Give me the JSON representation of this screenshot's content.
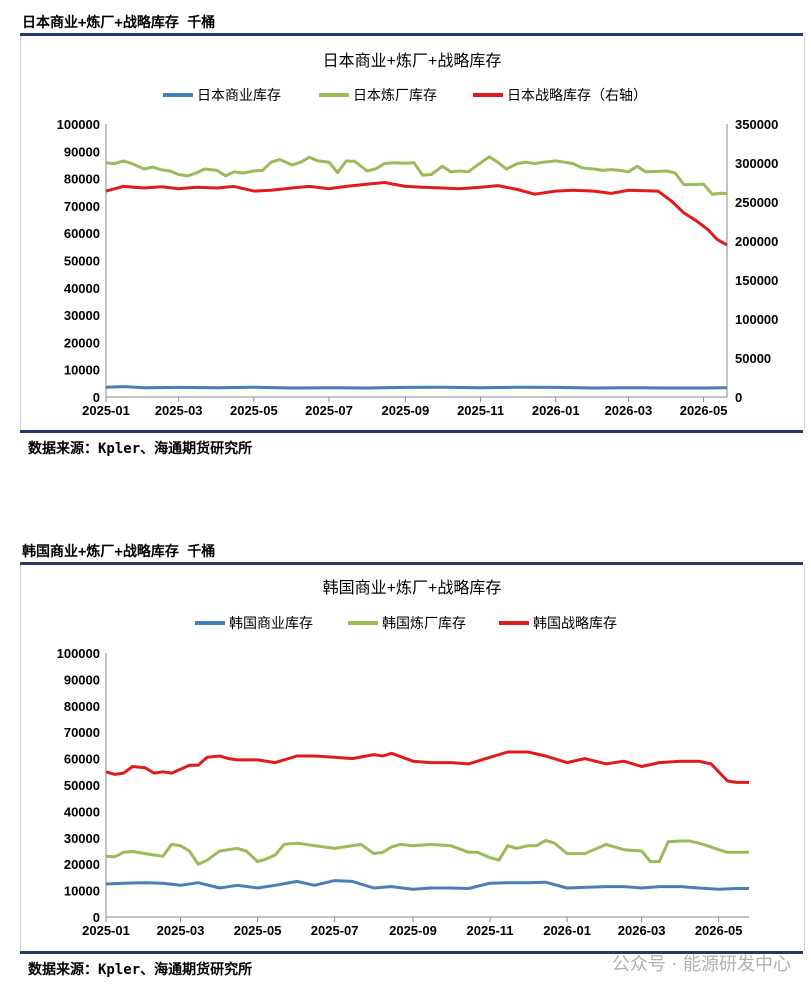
{
  "sections": [
    {
      "header": "日本商业+炼厂+战略库存  千桶",
      "source": "数据来源：Kpler、海通期货研究所"
    },
    {
      "header": "韩国商业+炼厂+战略库存  千桶",
      "source": "数据来源：Kpler、海通期货研究所"
    }
  ],
  "watermark": "公众号 · 能源研发中心",
  "chart_data": [
    {
      "type": "line",
      "title": "日本商业+炼厂+战略库存",
      "x_tick_labels": [
        "2025-01",
        "2025-03",
        "2025-05",
        "2025-07",
        "2025-09",
        "2025-11",
        "2026-01",
        "2026-03",
        "2026-05"
      ],
      "x_range": [
        "2025-01-01",
        "2026-05-20"
      ],
      "y_left": {
        "range": [
          0,
          100000
        ],
        "ticks": [
          0,
          10000,
          20000,
          30000,
          40000,
          50000,
          60000,
          70000,
          80000,
          90000,
          100000
        ]
      },
      "y_right": {
        "range": [
          0,
          350000
        ],
        "ticks": [
          0,
          50000,
          100000,
          150000,
          200000,
          250000,
          300000,
          350000
        ]
      },
      "legend_position": "top",
      "series": [
        {
          "name": "日本商业库存",
          "color": "#4a7ebb",
          "axis": "left",
          "x": [
            "2025-01-01",
            "2025-01-15",
            "2025-02-01",
            "2025-03-01",
            "2025-04-01",
            "2025-05-01",
            "2025-06-01",
            "2025-07-01",
            "2025-08-01",
            "2025-09-01",
            "2025-10-01",
            "2025-11-01",
            "2025-12-01",
            "2026-01-01",
            "2026-02-01",
            "2026-03-01",
            "2026-04-01",
            "2026-05-01",
            "2026-05-20"
          ],
          "values": [
            3600,
            3800,
            3400,
            3500,
            3400,
            3600,
            3300,
            3400,
            3300,
            3500,
            3600,
            3400,
            3600,
            3500,
            3300,
            3400,
            3300,
            3300,
            3400
          ]
        },
        {
          "name": "日本炼厂库存",
          "color": "#9bbb59",
          "axis": "left",
          "x": [
            "2025-01-01",
            "2025-01-08",
            "2025-01-15",
            "2025-01-22",
            "2025-02-01",
            "2025-02-08",
            "2025-02-15",
            "2025-02-22",
            "2025-03-01",
            "2025-03-08",
            "2025-03-15",
            "2025-03-22",
            "2025-04-01",
            "2025-04-08",
            "2025-04-15",
            "2025-04-22",
            "2025-05-01",
            "2025-05-08",
            "2025-05-15",
            "2025-05-22",
            "2025-06-01",
            "2025-06-08",
            "2025-06-15",
            "2025-06-22",
            "2025-07-01",
            "2025-07-08",
            "2025-07-15",
            "2025-07-22",
            "2025-08-01",
            "2025-08-08",
            "2025-08-15",
            "2025-08-22",
            "2025-09-01",
            "2025-09-08",
            "2025-09-15",
            "2025-09-22",
            "2025-10-01",
            "2025-10-08",
            "2025-10-15",
            "2025-10-22",
            "2025-11-01",
            "2025-11-08",
            "2025-11-15",
            "2025-11-22",
            "2025-12-01",
            "2025-12-08",
            "2025-12-15",
            "2025-12-22",
            "2026-01-01",
            "2026-01-08",
            "2026-01-15",
            "2026-01-22",
            "2026-02-01",
            "2026-02-08",
            "2026-02-15",
            "2026-02-22",
            "2026-03-01",
            "2026-03-08",
            "2026-03-15",
            "2026-03-22",
            "2026-04-01",
            "2026-04-08",
            "2026-04-15",
            "2026-04-22",
            "2026-05-01",
            "2026-05-08",
            "2026-05-15",
            "2026-05-20"
          ],
          "values": [
            85800,
            85500,
            86500,
            85500,
            83500,
            84200,
            83200,
            82800,
            81500,
            81000,
            82000,
            83500,
            83000,
            81000,
            82500,
            82000,
            82800,
            83000,
            86000,
            87000,
            85000,
            86000,
            87800,
            86500,
            86000,
            82200,
            86500,
            86300,
            82800,
            83600,
            85500,
            85800,
            85600,
            85800,
            81200,
            81500,
            84500,
            82500,
            82800,
            82500,
            85800,
            88000,
            86000,
            83500,
            85500,
            86000,
            85500,
            86000,
            86500,
            86000,
            85500,
            84000,
            83500,
            83000,
            83300,
            83000,
            82500,
            84500,
            82500,
            82600,
            82800,
            82000,
            77800,
            77800,
            78000,
            74300,
            74600,
            74500
          ]
        },
        {
          "name": "日本战略库存（右轴）",
          "color": "#e31a1c",
          "axis": "right",
          "x": [
            "2025-01-01",
            "2025-01-15",
            "2025-02-01",
            "2025-02-15",
            "2025-03-01",
            "2025-03-15",
            "2025-04-01",
            "2025-04-15",
            "2025-05-01",
            "2025-05-15",
            "2025-06-01",
            "2025-06-15",
            "2025-07-01",
            "2025-07-15",
            "2025-08-01",
            "2025-08-15",
            "2025-09-01",
            "2025-09-15",
            "2025-10-01",
            "2025-10-15",
            "2025-11-01",
            "2025-11-15",
            "2025-12-01",
            "2025-12-15",
            "2026-01-01",
            "2026-01-15",
            "2026-02-01",
            "2026-02-15",
            "2026-03-01",
            "2026-03-15",
            "2026-03-25",
            "2026-04-05",
            "2026-04-15",
            "2026-04-25",
            "2026-05-05",
            "2026-05-12",
            "2026-05-20"
          ],
          "values": [
            264000,
            270000,
            268000,
            269500,
            267000,
            269000,
            268000,
            270000,
            264000,
            265000,
            268000,
            270000,
            267000,
            270000,
            273000,
            275000,
            270000,
            269000,
            268000,
            267000,
            269000,
            271000,
            266000,
            260000,
            264000,
            265000,
            264000,
            261000,
            265000,
            264500,
            264000,
            251000,
            236000,
            226000,
            214000,
            202000,
            195000
          ]
        }
      ]
    },
    {
      "type": "line",
      "title": "韩国商业+炼厂+战略库存",
      "x_tick_labels": [
        "2025-01",
        "2025-03",
        "2025-05",
        "2025-07",
        "2025-09",
        "2025-11",
        "2026-01",
        "2026-03",
        "2026-05"
      ],
      "x_range": [
        "2025-01-01",
        "2026-05-25"
      ],
      "y_left": {
        "range": [
          0,
          100000
        ],
        "ticks": [
          0,
          10000,
          20000,
          30000,
          40000,
          50000,
          60000,
          70000,
          80000,
          90000,
          100000
        ]
      },
      "legend_position": "top",
      "series": [
        {
          "name": "韩国商业库存",
          "color": "#4a7ebb",
          "axis": "left",
          "x": [
            "2025-01-01",
            "2025-01-15",
            "2025-02-01",
            "2025-02-15",
            "2025-03-01",
            "2025-03-15",
            "2025-04-01",
            "2025-04-15",
            "2025-05-01",
            "2025-05-15",
            "2025-06-01",
            "2025-06-15",
            "2025-07-01",
            "2025-07-15",
            "2025-08-01",
            "2025-08-15",
            "2025-09-01",
            "2025-09-15",
            "2025-10-01",
            "2025-10-15",
            "2025-11-01",
            "2025-11-15",
            "2025-12-01",
            "2025-12-15",
            "2026-01-01",
            "2026-01-15",
            "2026-02-01",
            "2026-02-15",
            "2026-03-01",
            "2026-03-15",
            "2026-04-01",
            "2026-04-15",
            "2026-05-01",
            "2026-05-15",
            "2026-05-25"
          ],
          "values": [
            12500,
            12800,
            13000,
            12800,
            12000,
            13000,
            11000,
            12000,
            11000,
            12000,
            13500,
            12000,
            13800,
            13500,
            11000,
            11500,
            10500,
            11000,
            11000,
            10800,
            12800,
            13000,
            13000,
            13200,
            11000,
            11200,
            11500,
            11500,
            11000,
            11500,
            11500,
            11000,
            10500,
            10800,
            10800
          ]
        },
        {
          "name": "韩国炼厂库存",
          "color": "#9bbb59",
          "axis": "left",
          "x": [
            "2025-01-01",
            "2025-01-08",
            "2025-01-15",
            "2025-01-22",
            "2025-02-01",
            "2025-02-15",
            "2025-02-22",
            "2025-03-01",
            "2025-03-08",
            "2025-03-15",
            "2025-03-22",
            "2025-04-01",
            "2025-04-15",
            "2025-04-22",
            "2025-05-01",
            "2025-05-08",
            "2025-05-15",
            "2025-05-22",
            "2025-06-01",
            "2025-06-15",
            "2025-07-01",
            "2025-07-08",
            "2025-07-15",
            "2025-07-22",
            "2025-08-01",
            "2025-08-08",
            "2025-08-15",
            "2025-08-22",
            "2025-09-01",
            "2025-09-15",
            "2025-10-01",
            "2025-10-15",
            "2025-10-22",
            "2025-11-01",
            "2025-11-08",
            "2025-11-15",
            "2025-11-22",
            "2025-12-01",
            "2025-12-08",
            "2025-12-15",
            "2025-12-22",
            "2026-01-01",
            "2026-01-15",
            "2026-02-01",
            "2026-02-15",
            "2026-03-01",
            "2026-03-08",
            "2026-03-15",
            "2026-03-22",
            "2026-04-01",
            "2026-04-08",
            "2026-04-15",
            "2026-04-22",
            "2026-05-01",
            "2026-05-08",
            "2026-05-15",
            "2026-05-25"
          ],
          "values": [
            23000,
            22800,
            24500,
            24800,
            24000,
            23000,
            27500,
            27000,
            25000,
            20000,
            21500,
            25000,
            26000,
            25000,
            21000,
            22000,
            23500,
            27500,
            28000,
            27000,
            26000,
            26500,
            27000,
            27500,
            24000,
            24500,
            26500,
            27500,
            27000,
            27500,
            27000,
            24500,
            24500,
            22500,
            21500,
            27000,
            26000,
            27000,
            27000,
            29000,
            28000,
            24000,
            24000,
            27500,
            25500,
            25000,
            21000,
            21000,
            28500,
            28800,
            28800,
            28000,
            27000,
            25500,
            24500,
            24500,
            24500
          ]
        },
        {
          "name": "韩国战略库存",
          "color": "#e31a1c",
          "axis": "left",
          "x": [
            "2025-01-01",
            "2025-01-08",
            "2025-01-15",
            "2025-01-22",
            "2025-02-01",
            "2025-02-08",
            "2025-02-15",
            "2025-02-22",
            "2025-03-01",
            "2025-03-08",
            "2025-03-15",
            "2025-03-22",
            "2025-04-01",
            "2025-04-08",
            "2025-04-15",
            "2025-05-01",
            "2025-05-15",
            "2025-06-01",
            "2025-06-15",
            "2025-07-01",
            "2025-07-15",
            "2025-08-01",
            "2025-08-08",
            "2025-08-15",
            "2025-09-01",
            "2025-09-15",
            "2025-10-01",
            "2025-10-15",
            "2025-11-01",
            "2025-11-15",
            "2025-12-01",
            "2025-12-15",
            "2026-01-01",
            "2026-01-15",
            "2026-02-01",
            "2026-02-15",
            "2026-03-01",
            "2026-03-15",
            "2026-04-01",
            "2026-04-15",
            "2026-04-25",
            "2026-05-01",
            "2026-05-08",
            "2026-05-15",
            "2026-05-25"
          ],
          "values": [
            55000,
            54000,
            54500,
            57000,
            56500,
            54500,
            55000,
            54500,
            56000,
            57500,
            57500,
            60500,
            61000,
            60000,
            59500,
            59500,
            58500,
            61000,
            61000,
            60500,
            60000,
            61500,
            61000,
            62000,
            59000,
            58500,
            58500,
            58000,
            60500,
            62500,
            62500,
            61000,
            58500,
            60000,
            58000,
            59000,
            57000,
            58500,
            59000,
            59000,
            58000,
            55000,
            51500,
            51000,
            51000
          ]
        }
      ]
    }
  ]
}
